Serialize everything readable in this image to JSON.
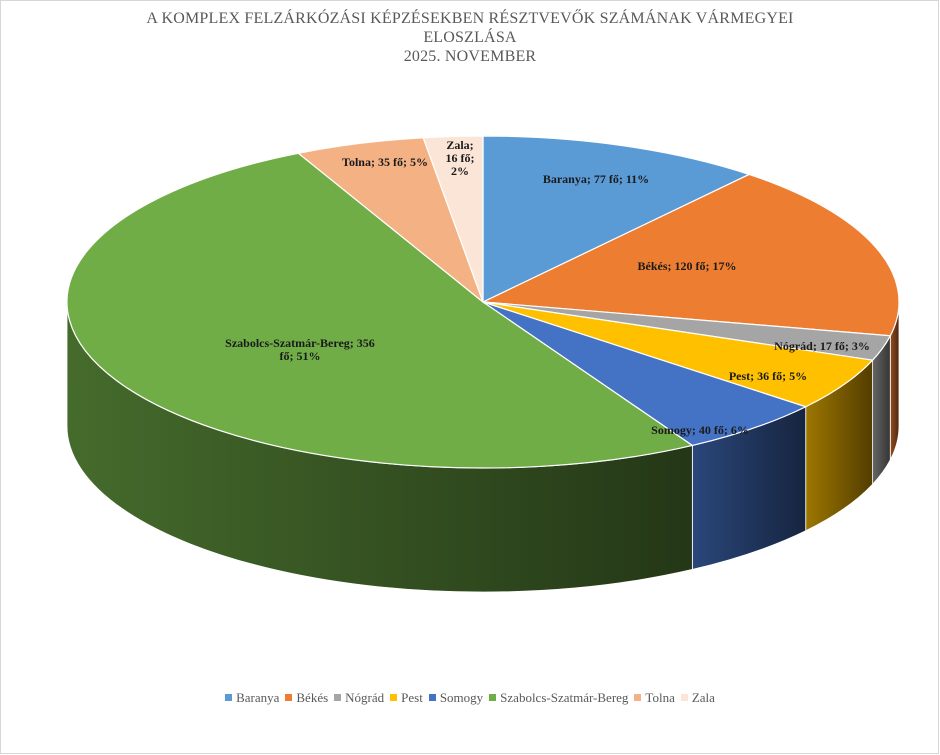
{
  "chart_data": {
    "type": "pie",
    "style": "3d",
    "title": "A KOMPLEX FELZÁRKÓZÁSI KÉPZÉSEKBEN RÉSZTVEVŐK SZÁMÁNAK VÁRMEGYEI ELOSZLÁSA",
    "title_lines": [
      "A KOMPLEX FELZÁRKÓZÁSI KÉPZÉSEKBEN RÉSZTVEVŐK SZÁMÁNAK VÁRMEGYEI",
      "ELOSZLÁSA",
      "2025. NOVEMBER"
    ],
    "legend_position": "bottom",
    "slices": [
      {
        "name": "Baranya",
        "value": 77,
        "percent": 11,
        "color": "#5B9BD5",
        "label_lines": [
          "Baranya;  77 fő; 11%"
        ]
      },
      {
        "name": "Békés",
        "value": 120,
        "percent": 17,
        "color": "#ED7D31",
        "label_lines": [
          "Békés;  120 fő; 17%"
        ]
      },
      {
        "name": "Nógrád",
        "value": 17,
        "percent": 3,
        "color": "#A5A5A5",
        "label_lines": [
          "Nógrád;  17 fő; 3%"
        ]
      },
      {
        "name": "Pest",
        "value": 36,
        "percent": 5,
        "color": "#FFC000",
        "label_lines": [
          "Pest;  36 fő; 5%"
        ]
      },
      {
        "name": "Somogy",
        "value": 40,
        "percent": 6,
        "color": "#4472C4",
        "label_lines": [
          "Somogy;  40 fő; 6%"
        ]
      },
      {
        "name": "Szabolcs-Szatmár-Bereg",
        "value": 356,
        "percent": 51,
        "color": "#70AD47",
        "label_lines": [
          "Szabolcs-Szatmár-Bereg;  356",
          "fő; 51%"
        ]
      },
      {
        "name": "Tolna",
        "value": 35,
        "percent": 5,
        "color": "#F4B183",
        "label_lines": [
          "Tolna;  35 fő; 5%"
        ]
      },
      {
        "name": "Zala",
        "value": 16,
        "percent": 2,
        "color": "#FBE5D6",
        "label_lines": [
          "Zala;",
          "16 fő;",
          "2%"
        ]
      }
    ]
  }
}
